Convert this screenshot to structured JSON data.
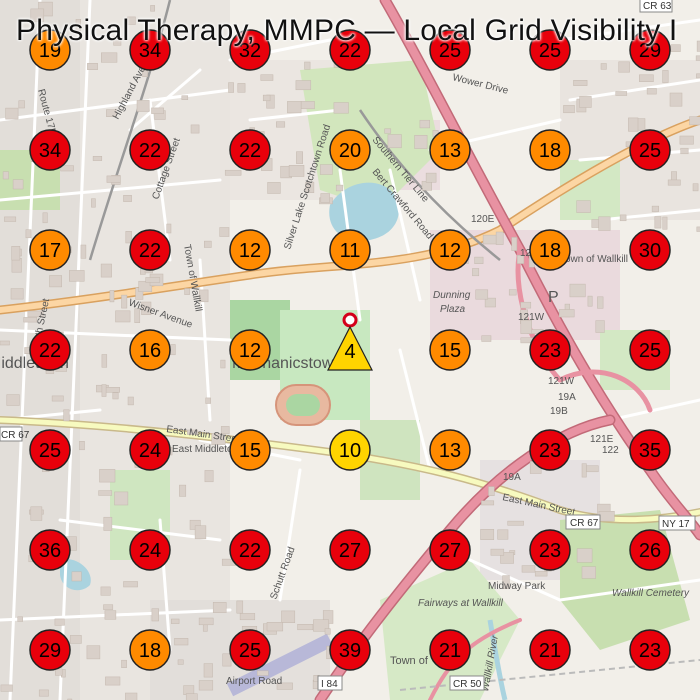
{
  "title": "Physical Therapy, MMPC — Local Grid Visibility I",
  "marker": {
    "rank": "4",
    "pin_color": "#d4001a",
    "triangle_color": "#ffd400"
  },
  "colors": {
    "bad": "#e8000b",
    "mid": "#ff8a00",
    "good": "#ffd400",
    "outline": "#222222"
  },
  "grid": {
    "rows": [
      [
        19,
        34,
        32,
        22,
        25,
        25,
        29
      ],
      [
        34,
        22,
        22,
        20,
        13,
        18,
        25
      ],
      [
        17,
        22,
        12,
        11,
        12,
        18,
        30
      ],
      [
        22,
        16,
        12,
        null,
        15,
        23,
        25
      ],
      [
        25,
        24,
        15,
        10,
        13,
        23,
        35
      ],
      [
        36,
        24,
        22,
        27,
        27,
        23,
        26
      ],
      [
        29,
        18,
        25,
        39,
        21,
        21,
        23
      ]
    ]
  },
  "map_labels": [
    {
      "text": "Highland Aven",
      "kind": "street"
    },
    {
      "text": "Cottage Street",
      "kind": "street"
    },
    {
      "text": "Town of Wallkill",
      "kind": "area"
    },
    {
      "text": "Silver Lake Scotchtown Road",
      "kind": "street"
    },
    {
      "text": "Southern Tier Line",
      "kind": "rail"
    },
    {
      "text": "Bert Crawford Road",
      "kind": "street"
    },
    {
      "text": "Dunning Plaza",
      "kind": "poi"
    },
    {
      "text": "Mechanicstown",
      "kind": "place"
    },
    {
      "text": "Wisner Avenue",
      "kind": "street"
    },
    {
      "text": "East Main Street",
      "kind": "street"
    },
    {
      "text": "East Middletown",
      "kind": "place"
    },
    {
      "text": "North Street",
      "kind": "street"
    },
    {
      "text": "Middletown",
      "kind": "place"
    },
    {
      "text": "Schutt Road",
      "kind": "street"
    },
    {
      "text": "Midway Park",
      "kind": "place"
    },
    {
      "text": "Wallkill Cemetery",
      "kind": "poi"
    },
    {
      "text": "Fairways at Wallkill",
      "kind": "poi"
    },
    {
      "text": "Airport Road",
      "kind": "street"
    },
    {
      "text": "Town of",
      "kind": "area"
    },
    {
      "text": "Wallkill River",
      "kind": "water"
    },
    {
      "text": "Town of Wallkill",
      "kind": "area"
    },
    {
      "text": "CR 67",
      "kind": "shield"
    },
    {
      "text": "NY 17",
      "kind": "shield"
    },
    {
      "text": "I 84",
      "kind": "shield"
    },
    {
      "text": "CR 50",
      "kind": "shield"
    },
    {
      "text": "CR 63",
      "kind": "shield"
    },
    {
      "text": "120",
      "kind": "exit"
    },
    {
      "text": "120E",
      "kind": "exit"
    },
    {
      "text": "121W",
      "kind": "exit"
    },
    {
      "text": "121E",
      "kind": "exit"
    },
    {
      "text": "122",
      "kind": "exit"
    },
    {
      "text": "19A",
      "kind": "exit"
    },
    {
      "text": "19B",
      "kind": "exit"
    },
    {
      "text": "P",
      "kind": "parking"
    },
    {
      "text": "Route 17M",
      "kind": "street"
    },
    {
      "text": "Wower Drive",
      "kind": "street"
    }
  ]
}
